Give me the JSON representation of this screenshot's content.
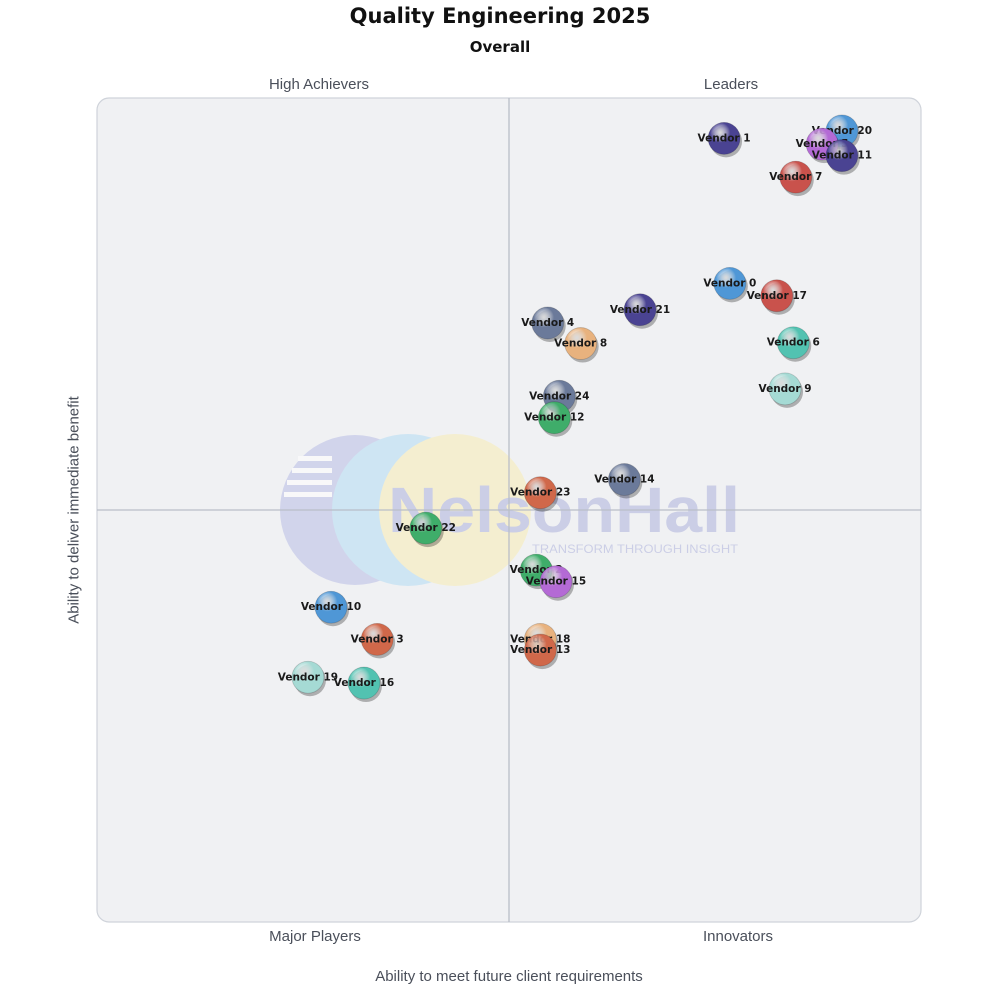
{
  "title": "Quality Engineering 2025",
  "subtitle": "Overall",
  "quadrants": {
    "top_left": "High Achievers",
    "top_right": "Leaders",
    "bottom_left": "Major Players",
    "bottom_right": "Innovators"
  },
  "watermark": {
    "brand": "NelsonHall",
    "tagline": "TRANSFORM THROUGH INSIGHT"
  },
  "colors": {
    "navy": "#4a4392",
    "blue": "#4f97d6",
    "red": "#c9524c",
    "orange": "#d0684a",
    "peach": "#e8b27e",
    "green": "#3fad6a",
    "teal": "#52c2b1",
    "lightteal": "#a5dad4",
    "slate": "#6b7a9a",
    "purple": "#b46ad5"
  },
  "chart_data": {
    "type": "scatter",
    "title": "Quality Engineering 2025",
    "subtitle": "Overall",
    "xlabel": "Ability to meet future client requirements",
    "ylabel": "Ability to deliver immediate benefit",
    "xlim": [
      0,
      1
    ],
    "ylim": [
      0,
      1
    ],
    "grid": false,
    "points": [
      {
        "name": "Vendor 20",
        "x": 0.904,
        "y": 0.96,
        "color": "blue"
      },
      {
        "name": "Vendor 1",
        "x": 0.761,
        "y": 0.951,
        "color": "navy"
      },
      {
        "name": "Vendor 5",
        "x": 0.88,
        "y": 0.944,
        "color": "purple"
      },
      {
        "name": "Vendor 11",
        "x": 0.904,
        "y": 0.93,
        "color": "navy"
      },
      {
        "name": "Vendor 7",
        "x": 0.848,
        "y": 0.904,
        "color": "red"
      },
      {
        "name": "Vendor 0",
        "x": 0.768,
        "y": 0.775,
        "color": "blue"
      },
      {
        "name": "Vendor 17",
        "x": 0.825,
        "y": 0.76,
        "color": "red"
      },
      {
        "name": "Vendor 21",
        "x": 0.659,
        "y": 0.743,
        "color": "navy"
      },
      {
        "name": "Vendor 4",
        "x": 0.547,
        "y": 0.727,
        "color": "slate"
      },
      {
        "name": "Vendor 8",
        "x": 0.587,
        "y": 0.702,
        "color": "peach"
      },
      {
        "name": "Vendor 6",
        "x": 0.845,
        "y": 0.703,
        "color": "teal"
      },
      {
        "name": "Vendor 9",
        "x": 0.835,
        "y": 0.647,
        "color": "lightteal"
      },
      {
        "name": "Vendor 24",
        "x": 0.561,
        "y": 0.638,
        "color": "slate"
      },
      {
        "name": "Vendor 12",
        "x": 0.555,
        "y": 0.612,
        "color": "green"
      },
      {
        "name": "Vendor 14",
        "x": 0.64,
        "y": 0.537,
        "color": "slate"
      },
      {
        "name": "Vendor 23",
        "x": 0.538,
        "y": 0.521,
        "color": "orange"
      },
      {
        "name": "Vendor 22",
        "x": 0.399,
        "y": 0.478,
        "color": "green"
      },
      {
        "name": "Vendor 2",
        "x": 0.533,
        "y": 0.427,
        "color": "green"
      },
      {
        "name": "Vendor 15",
        "x": 0.557,
        "y": 0.413,
        "color": "purple"
      },
      {
        "name": "Vendor 10",
        "x": 0.284,
        "y": 0.382,
        "color": "blue"
      },
      {
        "name": "Vendor 18",
        "x": 0.538,
        "y": 0.343,
        "color": "peach"
      },
      {
        "name": "Vendor 13",
        "x": 0.538,
        "y": 0.33,
        "color": "orange"
      },
      {
        "name": "Vendor 3",
        "x": 0.34,
        "y": 0.343,
        "color": "orange"
      },
      {
        "name": "Vendor 19",
        "x": 0.256,
        "y": 0.297,
        "color": "lightteal"
      },
      {
        "name": "Vendor 16",
        "x": 0.324,
        "y": 0.29,
        "color": "teal"
      }
    ]
  }
}
